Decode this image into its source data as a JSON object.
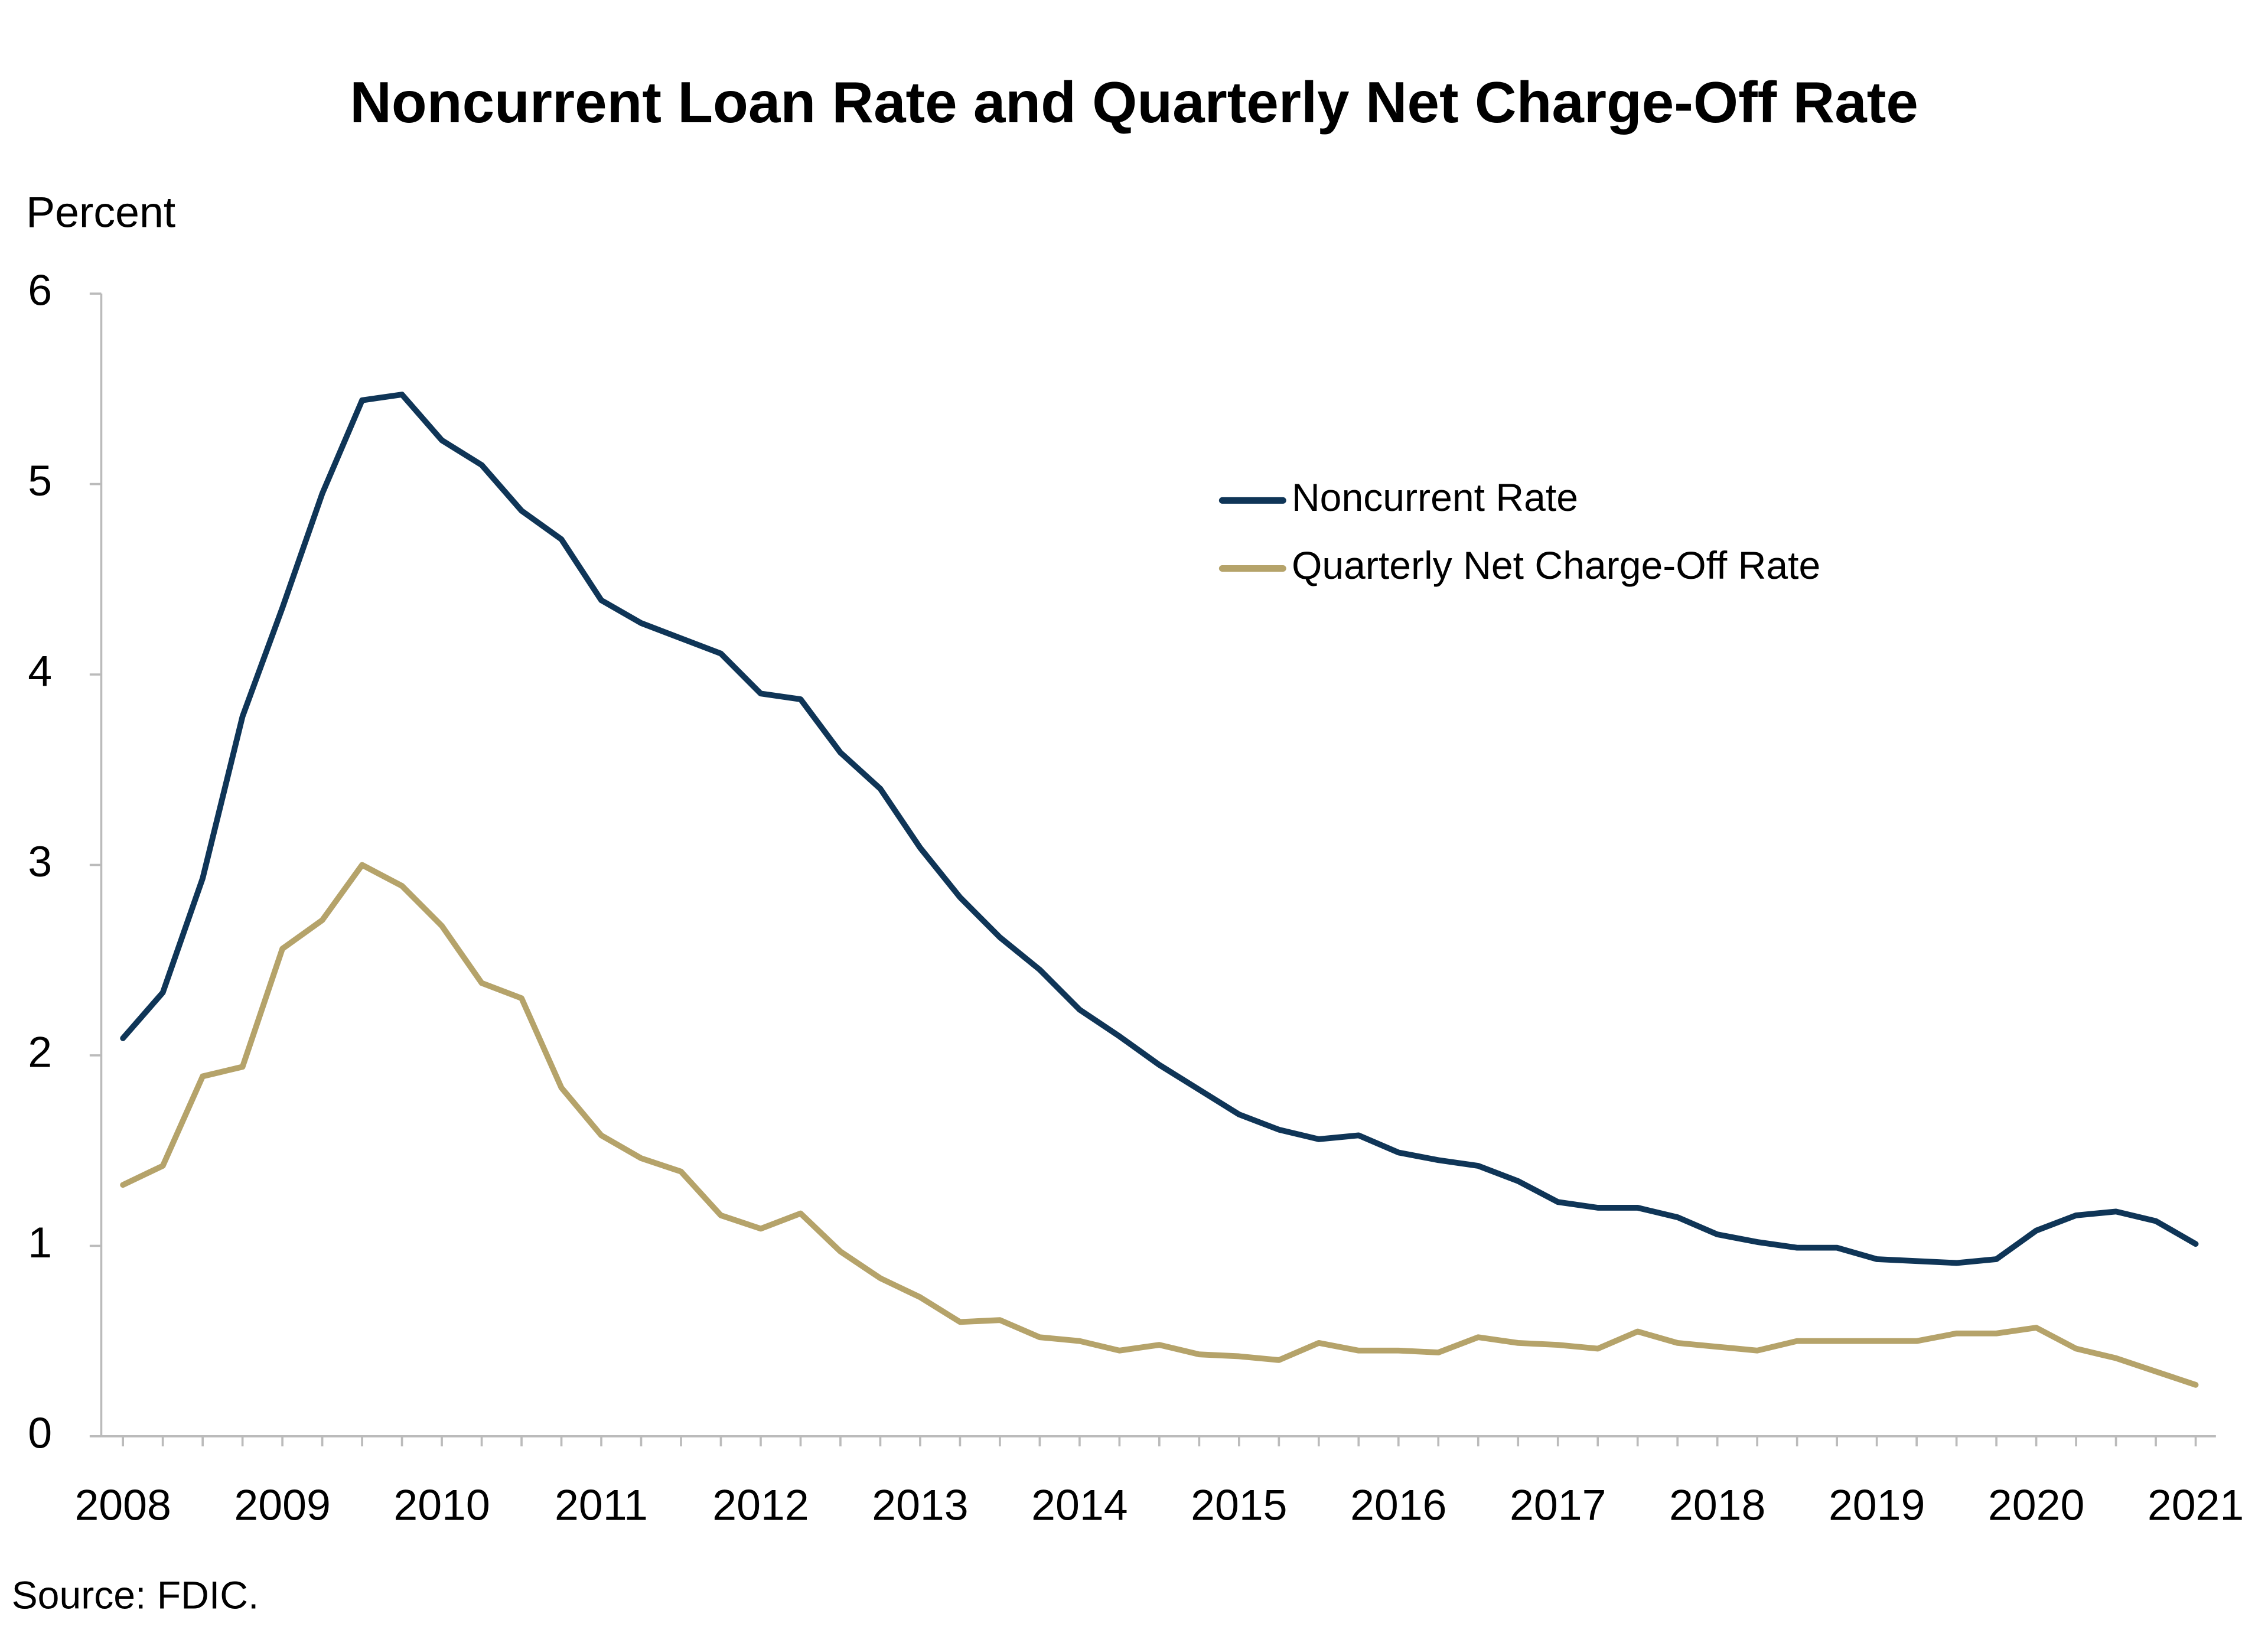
{
  "chart_data": {
    "type": "line",
    "title": "Noncurrent Loan Rate and Quarterly Net Charge-Off Rate",
    "y_label": "Percent",
    "source": "Source: FDIC.",
    "categories": [
      "2008",
      null,
      null,
      null,
      "2009",
      null,
      null,
      null,
      "2010",
      null,
      null,
      null,
      "2011",
      null,
      null,
      null,
      "2012",
      null,
      null,
      null,
      "2013",
      null,
      null,
      null,
      "2014",
      null,
      null,
      null,
      "2015",
      null,
      null,
      null,
      "2016",
      null,
      null,
      null,
      "2017",
      null,
      null,
      null,
      "2018",
      null,
      null,
      null,
      "2019",
      null,
      null,
      null,
      "2020",
      null,
      null,
      null,
      "2021"
    ],
    "series": [
      {
        "name": "Noncurrent Rate",
        "color": "#0f3557",
        "values": [
          2.09,
          2.33,
          2.93,
          3.78,
          4.35,
          4.95,
          5.44,
          5.47,
          5.23,
          5.1,
          4.86,
          4.71,
          4.39,
          4.27,
          4.19,
          4.11,
          3.9,
          3.87,
          3.59,
          3.4,
          3.09,
          2.83,
          2.62,
          2.45,
          2.24,
          2.1,
          1.95,
          1.82,
          1.69,
          1.61,
          1.56,
          1.58,
          1.49,
          1.45,
          1.42,
          1.34,
          1.23,
          1.2,
          1.2,
          1.15,
          1.06,
          1.02,
          0.99,
          0.99,
          0.93,
          0.92,
          0.91,
          0.93,
          1.08,
          1.16,
          1.18,
          1.13,
          1.01
        ]
      },
      {
        "name": "Quarterly Net Charge-Off Rate",
        "color": "#b5a36a",
        "values": [
          1.32,
          1.42,
          1.89,
          1.94,
          2.56,
          2.71,
          3.0,
          2.89,
          2.68,
          2.38,
          2.3,
          1.83,
          1.58,
          1.46,
          1.39,
          1.16,
          1.09,
          1.17,
          0.97,
          0.83,
          0.73,
          0.6,
          0.61,
          0.52,
          0.5,
          0.45,
          0.48,
          0.43,
          0.42,
          0.4,
          0.49,
          0.45,
          0.45,
          0.44,
          0.52,
          0.49,
          0.48,
          0.46,
          0.55,
          0.49,
          0.47,
          0.45,
          0.5,
          0.5,
          0.5,
          0.5,
          0.54,
          0.54,
          0.57,
          0.46,
          0.41,
          0.34,
          0.27
        ]
      }
    ],
    "ylim": [
      0,
      6
    ],
    "yticks": [
      0,
      1,
      2,
      3,
      4,
      5,
      6
    ],
    "grid": false
  }
}
